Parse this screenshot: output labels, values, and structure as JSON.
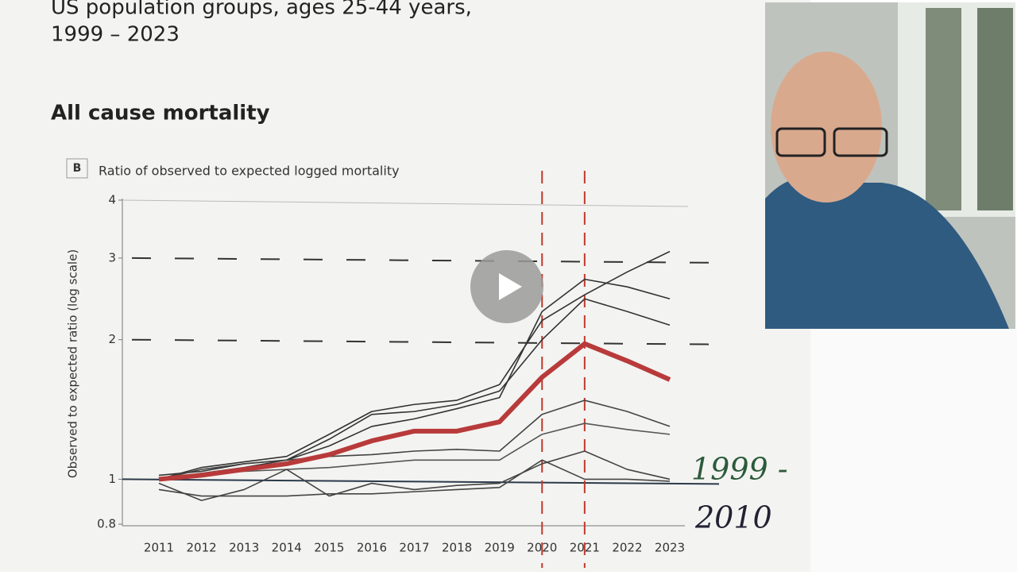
{
  "chart_data": {
    "type": "line",
    "title": "US population groups, ages 25-44 years,",
    "subtitle": "1999 – 2023",
    "section": "All cause mortality",
    "panel": "B",
    "panel_title": "Ratio of observed to expected logged mortality",
    "y_label": "Observed to expected ratio (log scale)",
    "log_scale": true,
    "categories": [
      "2011",
      "2012",
      "2013",
      "2014",
      "2015",
      "2016",
      "2017",
      "2018",
      "2019",
      "2020",
      "2021",
      "2022",
      "2023"
    ],
    "ylim": [
      0.8,
      4
    ],
    "yticks": [
      0.8,
      1,
      2,
      3,
      4
    ],
    "hlines": [
      2,
      3
    ],
    "series": [
      {
        "color": "#333333",
        "values": [
          1.0,
          1.06,
          1.09,
          1.12,
          1.25,
          1.4,
          1.45,
          1.48,
          1.6,
          2.2,
          2.5,
          2.8,
          3.1
        ]
      },
      {
        "color": "#333333",
        "values": [
          1.02,
          1.04,
          1.08,
          1.1,
          1.22,
          1.38,
          1.4,
          1.45,
          1.55,
          2.0,
          2.45,
          2.3,
          2.15
        ]
      },
      {
        "color": "#333333",
        "values": [
          1.0,
          1.03,
          1.06,
          1.1,
          1.18,
          1.3,
          1.35,
          1.42,
          1.5,
          2.3,
          2.7,
          2.6,
          2.45
        ]
      },
      {
        "color": "#444444",
        "values": [
          1.0,
          1.05,
          1.08,
          1.1,
          1.12,
          1.13,
          1.15,
          1.16,
          1.15,
          1.38,
          1.48,
          1.4,
          1.3
        ]
      },
      {
        "color": "#555555",
        "values": [
          1.0,
          1.02,
          1.04,
          1.05,
          1.06,
          1.08,
          1.1,
          1.1,
          1.1,
          1.25,
          1.32,
          1.28,
          1.25
        ]
      },
      {
        "color": "#444444",
        "values": [
          0.98,
          0.9,
          0.95,
          1.05,
          0.92,
          0.98,
          0.95,
          0.97,
          0.98,
          1.08,
          1.15,
          1.05,
          1.0
        ]
      },
      {
        "color": "#444444",
        "values": [
          0.95,
          0.92,
          0.92,
          0.92,
          0.93,
          0.93,
          0.94,
          0.95,
          0.96,
          1.1,
          1.0,
          1.0,
          0.99
        ]
      },
      {
        "color": "#b83a3a",
        "width": 6,
        "values": [
          1.0,
          1.02,
          1.05,
          1.08,
          1.13,
          1.21,
          1.27,
          1.27,
          1.33,
          1.66,
          1.96,
          1.8,
          1.64
        ]
      }
    ],
    "annotations": [
      "1999 -",
      "2010"
    ]
  }
}
